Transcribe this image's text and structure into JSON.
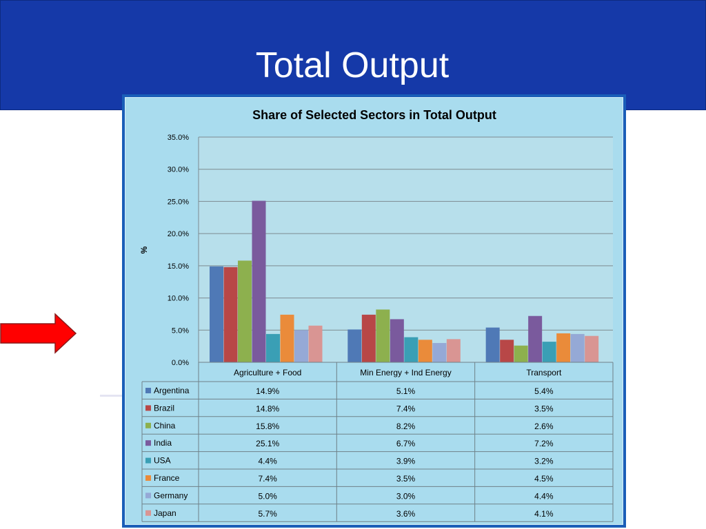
{
  "slide": {
    "title": "Total Output"
  },
  "colors": {
    "header_bg": "#1539a8",
    "frame": "#1a5eb8",
    "chart_bg": "#a9dcee",
    "plot_bg": "#b7dfeb",
    "arrow": "#ff0000"
  },
  "chart_data": {
    "type": "bar",
    "title": "Share of Selected Sectors in Total Output",
    "ylabel": "%",
    "xlabel": "",
    "ylim": [
      0,
      35
    ],
    "yticks": [
      "0.0%",
      "5.0%",
      "10.0%",
      "15.0%",
      "20.0%",
      "25.0%",
      "30.0%",
      "35.0%"
    ],
    "grid": true,
    "legend": "data-table",
    "categories": [
      "Agriculture + Food",
      "Min Energy + Ind Energy",
      "Transport"
    ],
    "series": [
      {
        "name": "Argentina",
        "color": "#4f79b6",
        "values": [
          14.9,
          5.1,
          5.4
        ],
        "labels": [
          "14.9%",
          "5.1%",
          "5.4%"
        ]
      },
      {
        "name": "Brazil",
        "color": "#b84747",
        "values": [
          14.8,
          7.4,
          3.5
        ],
        "labels": [
          "14.8%",
          "7.4%",
          "3.5%"
        ]
      },
      {
        "name": "China",
        "color": "#8db04e",
        "values": [
          15.8,
          8.2,
          2.6
        ],
        "labels": [
          "15.8%",
          "8.2%",
          "2.6%"
        ]
      },
      {
        "name": "India",
        "color": "#7a5a9d",
        "values": [
          25.1,
          6.7,
          7.2
        ],
        "labels": [
          "25.1%",
          "6.7%",
          "7.2%"
        ]
      },
      {
        "name": "USA",
        "color": "#3a9fb5",
        "values": [
          4.4,
          3.9,
          3.2
        ],
        "labels": [
          "4.4%",
          "3.9%",
          "3.2%"
        ]
      },
      {
        "name": "France",
        "color": "#ea8b3a",
        "values": [
          7.4,
          3.5,
          4.5
        ],
        "labels": [
          "7.4%",
          "3.5%",
          "4.5%"
        ]
      },
      {
        "name": "Germany",
        "color": "#95a9d6",
        "values": [
          5.0,
          3.0,
          4.4
        ],
        "labels": [
          "5.0%",
          "3.0%",
          "4.4%"
        ]
      },
      {
        "name": "Japan",
        "color": "#d99593",
        "values": [
          5.7,
          3.6,
          4.1
        ],
        "labels": [
          "5.7%",
          "3.6%",
          "4.1%"
        ]
      }
    ]
  }
}
